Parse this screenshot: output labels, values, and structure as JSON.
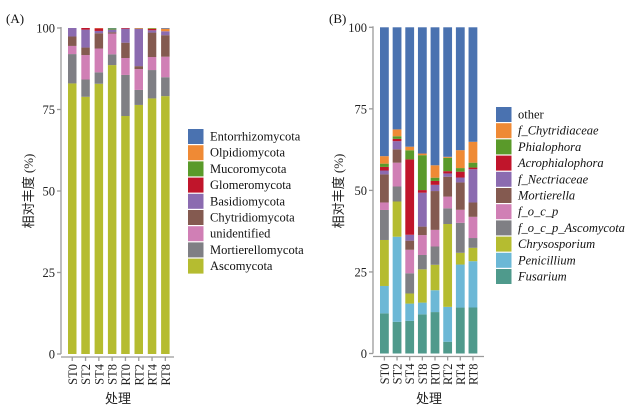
{
  "colors": {
    "blue": "#4a72b0",
    "orange": "#ef8a35",
    "green": "#5a9a2a",
    "red": "#c0152b",
    "purple": "#8b6bb0",
    "brown": "#845a50",
    "pink": "#d07fb5",
    "gray": "#7f7f84",
    "olive": "#b5bc30",
    "lightblue": "#6cb8d6",
    "teal": "#4f9a8c"
  },
  "chart_data": [
    {
      "type": "bar",
      "stacked": true,
      "panel_label": "(A)",
      "title": "",
      "xlabel": "处理",
      "ylabel": "相对丰度 (%)",
      "ylim": [
        0,
        100
      ],
      "yticks": [
        0,
        25,
        50,
        75,
        100
      ],
      "grid": false,
      "legend_position": "right",
      "categories": [
        "ST0",
        "ST2",
        "ST4",
        "ST8",
        "RT0",
        "RT2",
        "RT4",
        "RT8"
      ],
      "series": [
        {
          "name": "Ascomycota",
          "color": "#b5bc30",
          "values": [
            83.0,
            78.9,
            82.9,
            88.8,
            73.0,
            76.4,
            78.4,
            79.1
          ]
        },
        {
          "name": "Mortierellomycota",
          "color": "#7f7f84",
          "values": [
            9.0,
            5.3,
            3.5,
            3.3,
            12.6,
            4.6,
            8.7,
            5.8
          ]
        },
        {
          "name": "unidentified",
          "color": "#d07fb5",
          "values": [
            2.5,
            7.5,
            7.3,
            6.4,
            5.2,
            6.4,
            4.0,
            6.3
          ]
        },
        {
          "name": "Chytridiomycota",
          "color": "#845a50",
          "values": [
            2.9,
            2.3,
            4.7,
            0.4,
            4.7,
            0.9,
            7.5,
            6.6
          ]
        },
        {
          "name": "Basidiomycota",
          "color": "#8b6bb0",
          "values": [
            2.6,
            5.5,
            0.7,
            0.8,
            4.3,
            11.4,
            0.7,
            1.2
          ]
        },
        {
          "name": "Glomeromycota",
          "color": "#c0152b",
          "values": [
            0.0,
            0.5,
            0.8,
            0.0,
            0.2,
            0.1,
            0.4,
            0.0
          ]
        },
        {
          "name": "Mucoromycota",
          "color": "#5a9a2a",
          "values": [
            0.0,
            0.0,
            0.0,
            0.4,
            0.0,
            0.1,
            0.2,
            0.0
          ]
        },
        {
          "name": "Olpidiomycota",
          "color": "#ef8a35",
          "values": [
            0.0,
            0.0,
            0.1,
            0.0,
            0.0,
            0.1,
            0.1,
            0.8
          ]
        },
        {
          "name": "Entorrhizomycota",
          "color": "#4a72b0",
          "values": [
            0.0,
            0.0,
            0.0,
            0.1,
            0.0,
            0.0,
            0.0,
            0.2
          ]
        }
      ],
      "legend": [
        {
          "label": "Entorrhizomycota",
          "color": "#4a72b0",
          "italic": false
        },
        {
          "label": "Olpidiomycota",
          "color": "#ef8a35",
          "italic": false
        },
        {
          "label": "Mucoromycota",
          "color": "#5a9a2a",
          "italic": false
        },
        {
          "label": "Glomeromycota",
          "color": "#c0152b",
          "italic": false
        },
        {
          "label": "Basidiomycota",
          "color": "#8b6bb0",
          "italic": false
        },
        {
          "label": "Chytridiomycota",
          "color": "#845a50",
          "italic": false
        },
        {
          "label": "unidentified",
          "color": "#d07fb5",
          "italic": false
        },
        {
          "label": "Mortierellomycota",
          "color": "#7f7f84",
          "italic": false
        },
        {
          "label": "Ascomycota",
          "color": "#b5bc30",
          "italic": false
        }
      ]
    },
    {
      "type": "bar",
      "stacked": true,
      "panel_label": "(B)",
      "title": "",
      "xlabel": "处理",
      "ylabel": "相对丰度 (%)",
      "ylim": [
        0,
        100
      ],
      "yticks": [
        0,
        25,
        50,
        75,
        100
      ],
      "grid": false,
      "legend_position": "right",
      "categories": [
        "ST0",
        "ST2",
        "ST4",
        "ST8",
        "RT0",
        "RT2",
        "RT4",
        "RT8"
      ],
      "series": [
        {
          "name": "Fusarium",
          "color": "#4f9a8c",
          "values": [
            12.3,
            9.7,
            10.0,
            12.0,
            12.7,
            3.6,
            14.1,
            14.1
          ]
        },
        {
          "name": "Penicillium",
          "color": "#6cb8d6",
          "values": [
            8.4,
            26.1,
            5.3,
            3.6,
            6.7,
            10.7,
            13.2,
            14.2
          ]
        },
        {
          "name": "Chrysosporium",
          "color": "#b5bc30",
          "values": [
            14.1,
            10.8,
            3.1,
            10.2,
            7.8,
            25.4,
            3.6,
            4.1
          ]
        },
        {
          "name": "f_o_c_p_Ascomycota",
          "color": "#7f7f84",
          "values": [
            9.2,
            4.6,
            6.2,
            4.4,
            5.6,
            4.8,
            9.2,
            3.0
          ]
        },
        {
          "name": "f_o_c_p",
          "color": "#d07fb5",
          "values": [
            2.3,
            7.3,
            7.2,
            6.1,
            5.1,
            3.6,
            4.0,
            6.5
          ]
        },
        {
          "name": "Mortierella",
          "color": "#845a50",
          "values": [
            8.6,
            4.1,
            2.8,
            2.6,
            11.9,
            6.1,
            8.4,
            4.4
          ]
        },
        {
          "name": "f_Nectriaceae",
          "color": "#8b6bb0",
          "values": [
            1.2,
            2.5,
            1.8,
            10.4,
            1.9,
            1.0,
            1.5,
            10.2
          ]
        },
        {
          "name": "Acrophialophora",
          "color": "#c0152b",
          "values": [
            1.1,
            0.7,
            23.1,
            0.8,
            1.2,
            0.7,
            1.8,
            0.5
          ]
        },
        {
          "name": "Phialophora",
          "color": "#5a9a2a",
          "values": [
            1.0,
            0.8,
            2.8,
            10.7,
            1.0,
            4.1,
            1.1,
            1.5
          ]
        },
        {
          "name": "f_Chytridiaceae",
          "color": "#ef8a35",
          "values": [
            2.3,
            2.1,
            1.1,
            0.5,
            3.8,
            0.3,
            5.5,
            6.4
          ]
        },
        {
          "name": "other",
          "color": "#4a72b0",
          "values": [
            39.5,
            31.3,
            36.6,
            38.7,
            42.3,
            39.7,
            37.7,
            35.1
          ]
        }
      ],
      "legend": [
        {
          "label": "other",
          "color": "#4a72b0",
          "italic": false
        },
        {
          "label": "f_Chytridiaceae",
          "color": "#ef8a35",
          "italic": true
        },
        {
          "label": "Phialophora",
          "color": "#5a9a2a",
          "italic": true
        },
        {
          "label": "Acrophialophora",
          "color": "#c0152b",
          "italic": true
        },
        {
          "label": "f_Nectriaceae",
          "color": "#8b6bb0",
          "italic": true
        },
        {
          "label": "Mortierella",
          "color": "#845a50",
          "italic": true
        },
        {
          "label": "f_o_c_p",
          "color": "#d07fb5",
          "italic": true
        },
        {
          "label": "f_o_c_p_Ascomycota",
          "color": "#7f7f84",
          "italic": true
        },
        {
          "label": "Chrysosporium",
          "color": "#b5bc30",
          "italic": true
        },
        {
          "label": "Penicillium",
          "color": "#6cb8d6",
          "italic": true
        },
        {
          "label": "Fusarium",
          "color": "#4f9a8c",
          "italic": true
        }
      ]
    }
  ]
}
